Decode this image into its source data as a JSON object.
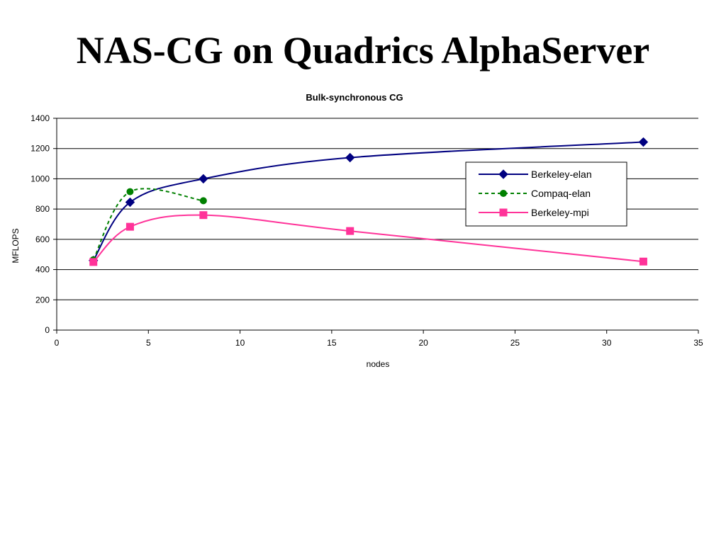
{
  "slide": {
    "title": "NAS-CG on Quadrics AlphaServer"
  },
  "chart_data": {
    "type": "line",
    "title": "Bulk-synchronous CG",
    "xlabel": "nodes",
    "ylabel": "MFLOPS",
    "xlim": [
      0,
      35
    ],
    "ylim": [
      0,
      1400
    ],
    "xticks": [
      0,
      5,
      10,
      15,
      20,
      25,
      30,
      35
    ],
    "yticks": [
      0,
      200,
      400,
      600,
      800,
      1000,
      1200,
      1400
    ],
    "grid": "horizontal",
    "legend_position": "right",
    "series": [
      {
        "name": "Berkeley-elan",
        "color": "#000080",
        "marker": "diamond",
        "line_style": "solid",
        "smooth": true,
        "x": [
          2,
          4,
          8,
          16,
          32
        ],
        "y": [
          460,
          845,
          1000,
          1140,
          1243
        ]
      },
      {
        "name": "Compaq-elan",
        "color": "#008000",
        "marker": "circle",
        "line_style": "dashed",
        "smooth": true,
        "x": [
          2,
          4,
          8
        ],
        "y": [
          465,
          915,
          855
        ]
      },
      {
        "name": "Berkeley-mpi",
        "color": "#ff3399",
        "marker": "square",
        "line_style": "solid",
        "smooth": true,
        "x": [
          2,
          4,
          8,
          16,
          32
        ],
        "y": [
          450,
          683,
          760,
          655,
          453
        ]
      }
    ]
  }
}
